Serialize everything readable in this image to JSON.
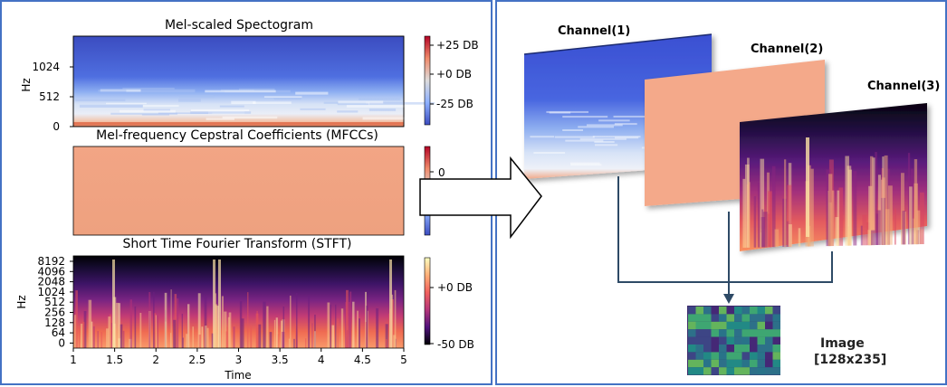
{
  "left_panel": {
    "mel": {
      "title": "Mel-scaled Spectogram",
      "ylabel": "Hz",
      "yticks": [
        "1024",
        "512",
        "0"
      ],
      "colorbar_ticks": [
        "+25 DB",
        "+0 DB",
        "-25 DB"
      ]
    },
    "mfcc": {
      "title": "Mel-frequency Cepstral Coefficients (MFCCs)",
      "colorbar_ticks": [
        "0"
      ]
    },
    "stft": {
      "title": "Short Time Fourier Transform (STFT)",
      "ylabel": "Hz",
      "yticks": [
        "8192",
        "4096",
        "2048",
        "1024",
        "512",
        "256",
        "128",
        "64",
        "0"
      ],
      "xticks": [
        "1",
        "1.5",
        "2",
        "2.5",
        "3",
        "3.5",
        "4",
        "4.5",
        "5"
      ],
      "xlabel": "Time",
      "colorbar_ticks": [
        "+0 DB",
        "-50 DB"
      ]
    }
  },
  "right_panel": {
    "channels": [
      "Channel(1)",
      "Channel(2)",
      "Channel(3)"
    ],
    "output_label_line1": "Image",
    "output_label_line2": "[128x235]"
  },
  "colors": {
    "panel_border": "#4472c4",
    "connector": "#2e4a66",
    "mfcc_fill": "#f2a585",
    "mel_top": "#3d5bd6"
  }
}
